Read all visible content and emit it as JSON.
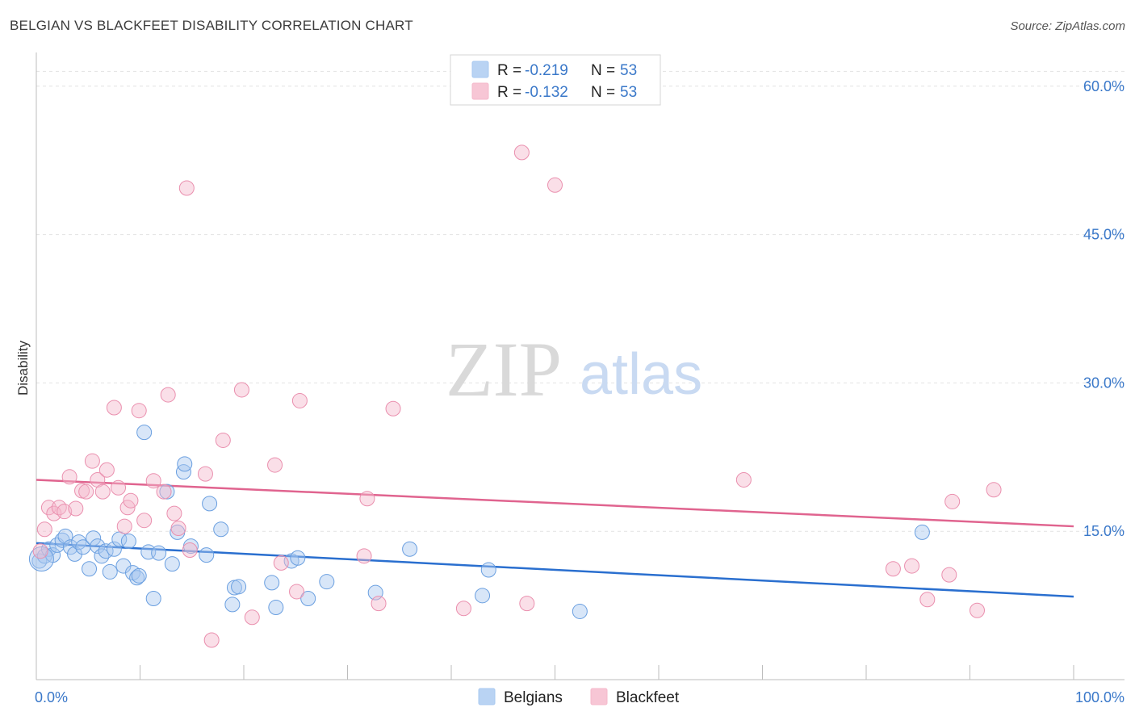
{
  "title": "BELGIAN VS BLACKFEET DISABILITY CORRELATION CHART",
  "source": "Source: ZipAtlas.com",
  "watermark": {
    "zip": "ZIP",
    "atlas": "atlas"
  },
  "legend": {
    "rows": [
      {
        "r_label": "R =",
        "r_value": "-0.219",
        "n_label": "N =",
        "n_value": "53",
        "color": "#a8c8f0"
      },
      {
        "r_label": "R =",
        "r_value": "-0.132",
        "n_label": "N =",
        "n_value": "53",
        "color": "#f5b8cb"
      }
    ]
  },
  "bottom_legend": [
    {
      "label": "Belgians",
      "color": "#a8c8f0"
    },
    {
      "label": "Blackfeet",
      "color": "#f5b8cb"
    }
  ],
  "chart_data": {
    "type": "scatter",
    "title": "BELGIAN VS BLACKFEET DISABILITY CORRELATION CHART",
    "xlabel": "",
    "ylabel": "Disability",
    "xlim": [
      0,
      100
    ],
    "ylim": [
      0,
      63
    ],
    "x_tick_labels": [
      "0.0%",
      "100.0%"
    ],
    "y_ticks": [
      15,
      30,
      45,
      60
    ],
    "y_tick_labels": [
      "15.0%",
      "30.0%",
      "45.0%",
      "60.0%"
    ],
    "grid": "horizontal dashed",
    "legend_position": "top-center",
    "series": [
      {
        "name": "Belgians",
        "color": "#6a9fe0",
        "fill": "#a8c8f0",
        "trend": {
          "x0": 0,
          "y0": 13.8,
          "x1": 100,
          "y1": 8.4,
          "color": "#2a6fcf"
        },
        "points": [
          [
            0.3,
            12.0
          ],
          [
            0.8,
            12.5
          ],
          [
            1.2,
            13.2
          ],
          [
            1.6,
            12.6
          ],
          [
            2.0,
            13.6
          ],
          [
            2.5,
            14.1
          ],
          [
            2.8,
            14.5
          ],
          [
            3.3,
            13.4
          ],
          [
            3.7,
            12.7
          ],
          [
            4.1,
            13.9
          ],
          [
            4.5,
            13.4
          ],
          [
            5.1,
            11.2
          ],
          [
            5.5,
            14.3
          ],
          [
            5.9,
            13.5
          ],
          [
            6.3,
            12.5
          ],
          [
            6.7,
            13.0
          ],
          [
            7.1,
            10.9
          ],
          [
            7.5,
            13.2
          ],
          [
            8.0,
            14.2
          ],
          [
            8.4,
            11.5
          ],
          [
            8.9,
            14.0
          ],
          [
            9.3,
            10.8
          ],
          [
            9.7,
            10.3
          ],
          [
            9.9,
            10.5
          ],
          [
            10.4,
            25.0
          ],
          [
            10.8,
            12.9
          ],
          [
            11.3,
            8.2
          ],
          [
            11.8,
            12.8
          ],
          [
            12.6,
            19.0
          ],
          [
            13.1,
            11.7
          ],
          [
            13.6,
            14.9
          ],
          [
            14.2,
            21.0
          ],
          [
            14.3,
            21.8
          ],
          [
            14.9,
            13.5
          ],
          [
            16.4,
            12.6
          ],
          [
            16.7,
            17.8
          ],
          [
            17.8,
            15.2
          ],
          [
            18.9,
            7.6
          ],
          [
            19.1,
            9.3
          ],
          [
            19.5,
            9.4
          ],
          [
            22.7,
            9.8
          ],
          [
            23.1,
            7.3
          ],
          [
            24.6,
            12.0
          ],
          [
            25.2,
            12.3
          ],
          [
            26.2,
            8.2
          ],
          [
            28.0,
            9.9
          ],
          [
            32.7,
            8.8
          ],
          [
            36.0,
            13.2
          ],
          [
            43.0,
            8.5
          ],
          [
            43.6,
            11.1
          ],
          [
            52.4,
            6.9
          ],
          [
            85.4,
            14.9
          ],
          [
            0.5,
            12.2
          ]
        ]
      },
      {
        "name": "Blackfeet",
        "color": "#ea8fae",
        "fill": "#f5b8cb",
        "trend": {
          "x0": 0,
          "y0": 20.2,
          "x1": 100,
          "y1": 15.5,
          "color": "#e0648f"
        },
        "points": [
          [
            0.4,
            13.0
          ],
          [
            0.8,
            15.2
          ],
          [
            1.2,
            17.4
          ],
          [
            1.7,
            16.8
          ],
          [
            2.2,
            17.4
          ],
          [
            2.7,
            17.0
          ],
          [
            3.2,
            20.5
          ],
          [
            3.8,
            17.3
          ],
          [
            4.4,
            19.1
          ],
          [
            4.8,
            19.0
          ],
          [
            5.4,
            22.1
          ],
          [
            5.9,
            20.2
          ],
          [
            6.4,
            19.0
          ],
          [
            6.8,
            21.2
          ],
          [
            7.5,
            27.5
          ],
          [
            7.9,
            19.4
          ],
          [
            8.5,
            15.5
          ],
          [
            8.8,
            17.4
          ],
          [
            9.1,
            18.1
          ],
          [
            9.9,
            27.2
          ],
          [
            10.4,
            16.1
          ],
          [
            11.3,
            20.1
          ],
          [
            12.3,
            19.0
          ],
          [
            12.7,
            28.8
          ],
          [
            13.3,
            16.8
          ],
          [
            13.7,
            15.3
          ],
          [
            14.5,
            49.7
          ],
          [
            14.8,
            13.1
          ],
          [
            16.3,
            20.8
          ],
          [
            16.9,
            4.0
          ],
          [
            18.0,
            24.2
          ],
          [
            19.8,
            29.3
          ],
          [
            20.8,
            6.3
          ],
          [
            23.0,
            21.7
          ],
          [
            23.6,
            11.8
          ],
          [
            25.1,
            8.9
          ],
          [
            25.4,
            28.2
          ],
          [
            31.6,
            12.5
          ],
          [
            31.9,
            18.3
          ],
          [
            33.0,
            7.7
          ],
          [
            34.4,
            27.4
          ],
          [
            41.2,
            7.2
          ],
          [
            46.8,
            53.3
          ],
          [
            47.3,
            7.7
          ],
          [
            50.0,
            50.0
          ],
          [
            68.2,
            20.2
          ],
          [
            82.6,
            11.2
          ],
          [
            84.4,
            11.5
          ],
          [
            85.9,
            8.1
          ],
          [
            88.0,
            10.6
          ],
          [
            88.3,
            18.0
          ],
          [
            90.7,
            7.0
          ],
          [
            92.3,
            19.2
          ]
        ]
      }
    ]
  }
}
